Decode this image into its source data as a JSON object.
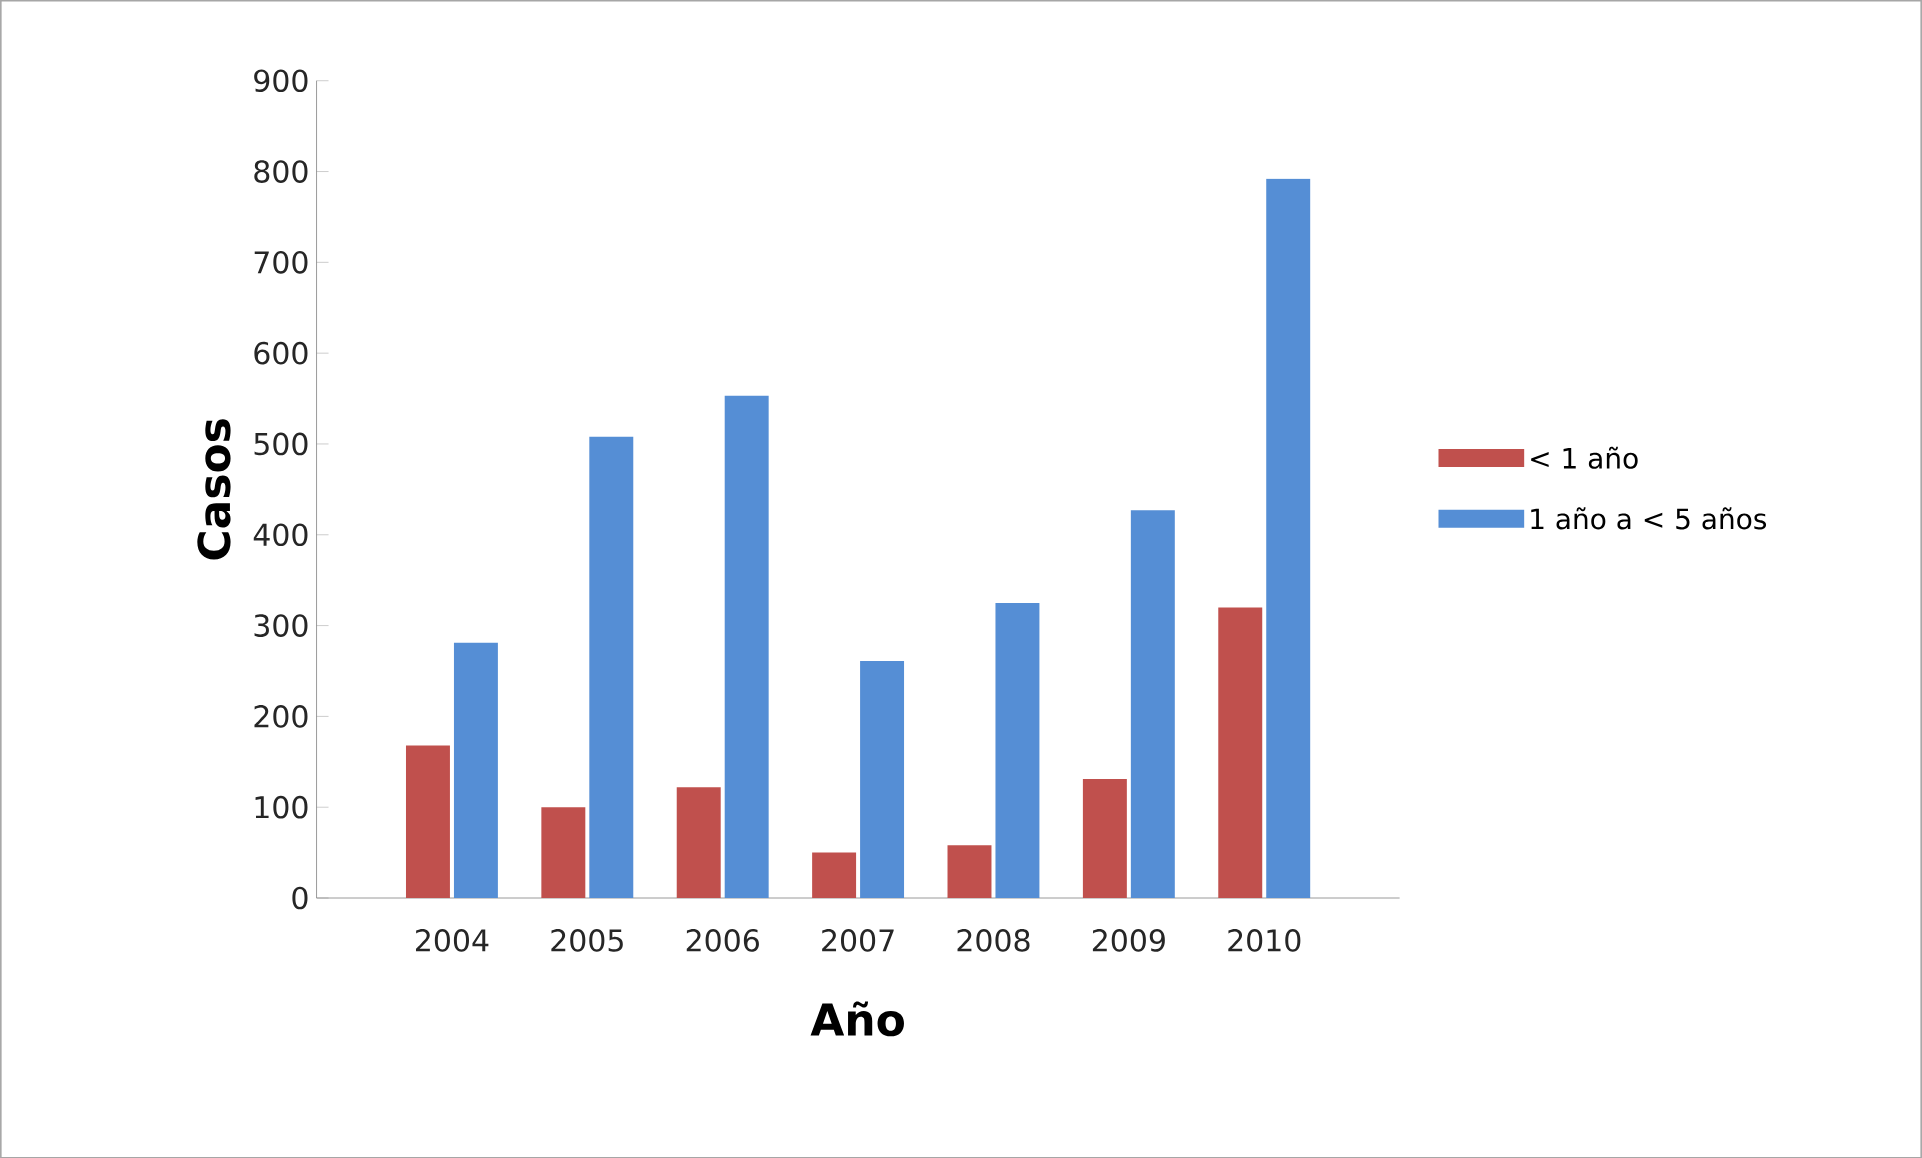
{
  "chart_data": {
    "type": "bar",
    "xlabel": "Año",
    "ylabel": "Casos",
    "categories": [
      "2004",
      "2005",
      "2006",
      "2007",
      "2008",
      "2009",
      "2010"
    ],
    "series": [
      {
        "name": "< 1 año",
        "color": "#c0504d",
        "values": [
          168,
          100,
          122,
          50,
          58,
          131,
          320
        ]
      },
      {
        "name": "1 año a  < 5 años",
        "color": "#558ed5",
        "values": [
          281,
          508,
          553,
          261,
          325,
          427,
          792
        ]
      }
    ],
    "ylim": [
      0,
      900
    ],
    "yticks": [
      0,
      100,
      200,
      300,
      400,
      500,
      600,
      700,
      800,
      900
    ],
    "grid": false,
    "legend": "right"
  }
}
